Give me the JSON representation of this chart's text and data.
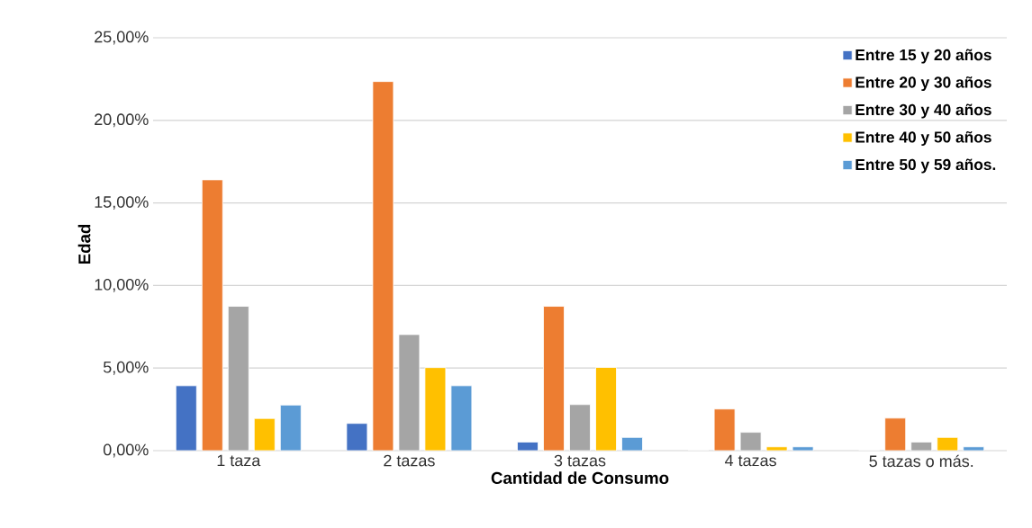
{
  "chart_data": {
    "type": "bar",
    "xlabel": "Cantidad de Consumo",
    "ylabel": "Edad",
    "categories": [
      "1 taza",
      "2 tazas",
      "3 tazas",
      "4 tazas",
      "5 tazas o más."
    ],
    "series": [
      {
        "name": "Entre 15 y 20 años",
        "color": "#4472c4",
        "values": [
          3.93,
          1.65,
          0.52,
          0,
          0
        ]
      },
      {
        "name": "Entre 20 y 30 años",
        "color": "#ed7d31",
        "values": [
          16.4,
          22.35,
          8.74,
          2.52,
          1.97
        ]
      },
      {
        "name": "Entre 30 y 40 años",
        "color": "#a5a5a5",
        "values": [
          8.74,
          7.03,
          2.79,
          1.11,
          0.52
        ]
      },
      {
        "name": "Entre 40 y 50 años",
        "color": "#ffc000",
        "values": [
          1.95,
          5.03,
          5.04,
          0.23,
          0.8
        ]
      },
      {
        "name": "Entre 50 y 59 años.",
        "color": "#5b9bd5",
        "values": [
          2.76,
          3.93,
          0.8,
          0.23,
          0.23
        ]
      }
    ],
    "ylim": [
      0,
      25
    ],
    "yticks": [
      {
        "value": 0,
        "label": "0,00%"
      },
      {
        "value": 5,
        "label": "5,00%"
      },
      {
        "value": 10,
        "label": "10,00%"
      },
      {
        "value": 15,
        "label": "15,00%"
      },
      {
        "value": 20,
        "label": "20,00%"
      },
      {
        "value": 25,
        "label": "25,00%"
      }
    ],
    "grid": "y",
    "legend": "top right"
  }
}
